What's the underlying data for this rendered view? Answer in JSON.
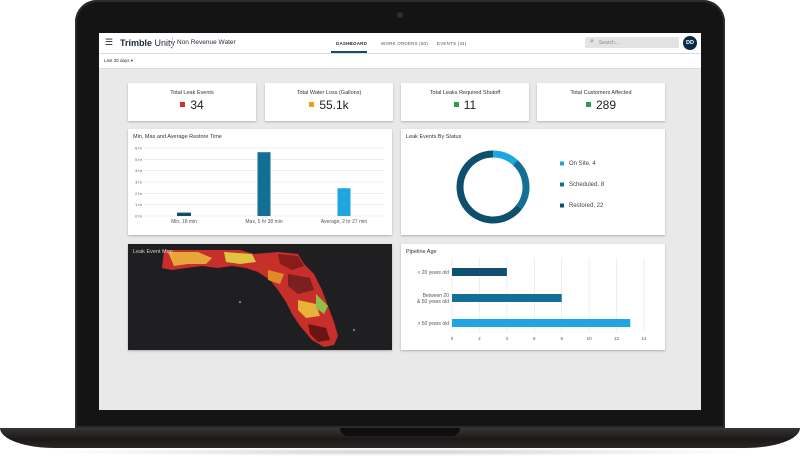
{
  "app": {
    "brand_bold": "Trimble",
    "brand_light": "Unity",
    "module_name": "Non Revenue Water",
    "menu_icon": "menu-icon"
  },
  "nav": {
    "tabs": [
      {
        "label": "DASHBOARD",
        "active": true
      },
      {
        "label": "WORK ORDERS (60)",
        "active": false
      },
      {
        "label": "EVENTS (34)",
        "active": false
      }
    ]
  },
  "search": {
    "placeholder": "Search...",
    "icon": "search-icon"
  },
  "user": {
    "initials": "DD"
  },
  "filter": {
    "date_range": "Last 30 days ▾"
  },
  "kpis": [
    {
      "title": "Total Leak Events",
      "value": "34",
      "color": "#d32f2f"
    },
    {
      "title": "Total Water Loss (Gallons)",
      "value": "55.1k",
      "color": "#f29c1f"
    },
    {
      "title": "Total Leaks Required Shutoff",
      "value": "11",
      "color": "#2e9e4b"
    },
    {
      "title": "Total Customers Affected",
      "value": "289",
      "color": "#2e9e4b"
    }
  ],
  "restore_chart": {
    "title": "Min, Max and Average Restore Time",
    "chart_data": {
      "type": "bar",
      "categories": [
        "Min, 18 min",
        "Max, 5 hr 38 min",
        "Average, 2 hr 27 min"
      ],
      "values": [
        0.3,
        5.63,
        2.45
      ],
      "colors": [
        "#0e4f6e",
        "#136f96",
        "#1fa5e0"
      ],
      "ylim": [
        0,
        6
      ],
      "yticks": [
        0,
        1,
        2,
        3,
        4,
        5,
        6
      ],
      "ytick_labels": [
        "0 hr",
        "1 hr",
        "2 hr",
        "3 hr",
        "4 hr",
        "5 hr",
        "6 hr"
      ],
      "grid": true
    }
  },
  "status_chart": {
    "title": "Leak Events By Status",
    "chart_data": {
      "type": "pie",
      "labels": [
        "On Site, 4",
        "Scheduled, 8",
        "Restored, 22"
      ],
      "values": [
        4,
        8,
        22
      ],
      "colors": [
        "#1fa5e0",
        "#136f96",
        "#0e4f6e"
      ],
      "legend": "right"
    }
  },
  "map": {
    "title": "Leak Event Map"
  },
  "pipeline_chart": {
    "title": "Pipeline Age",
    "chart_data": {
      "type": "bar",
      "orientation": "horizontal",
      "categories": [
        "< 20 years old",
        "Between 20 & 50 years old",
        "> 50 years old"
      ],
      "category_lines": [
        [
          "< 20 years old"
        ],
        [
          "Between 20",
          "& 50 years old"
        ],
        [
          "> 50 years old"
        ]
      ],
      "values": [
        4,
        8,
        13
      ],
      "colors": [
        "#0e4f6e",
        "#136f96",
        "#1fa5e0"
      ],
      "xlim": [
        0,
        14
      ],
      "xticks": [
        0,
        2,
        4,
        6,
        8,
        10,
        12,
        14
      ],
      "grid": true
    }
  }
}
